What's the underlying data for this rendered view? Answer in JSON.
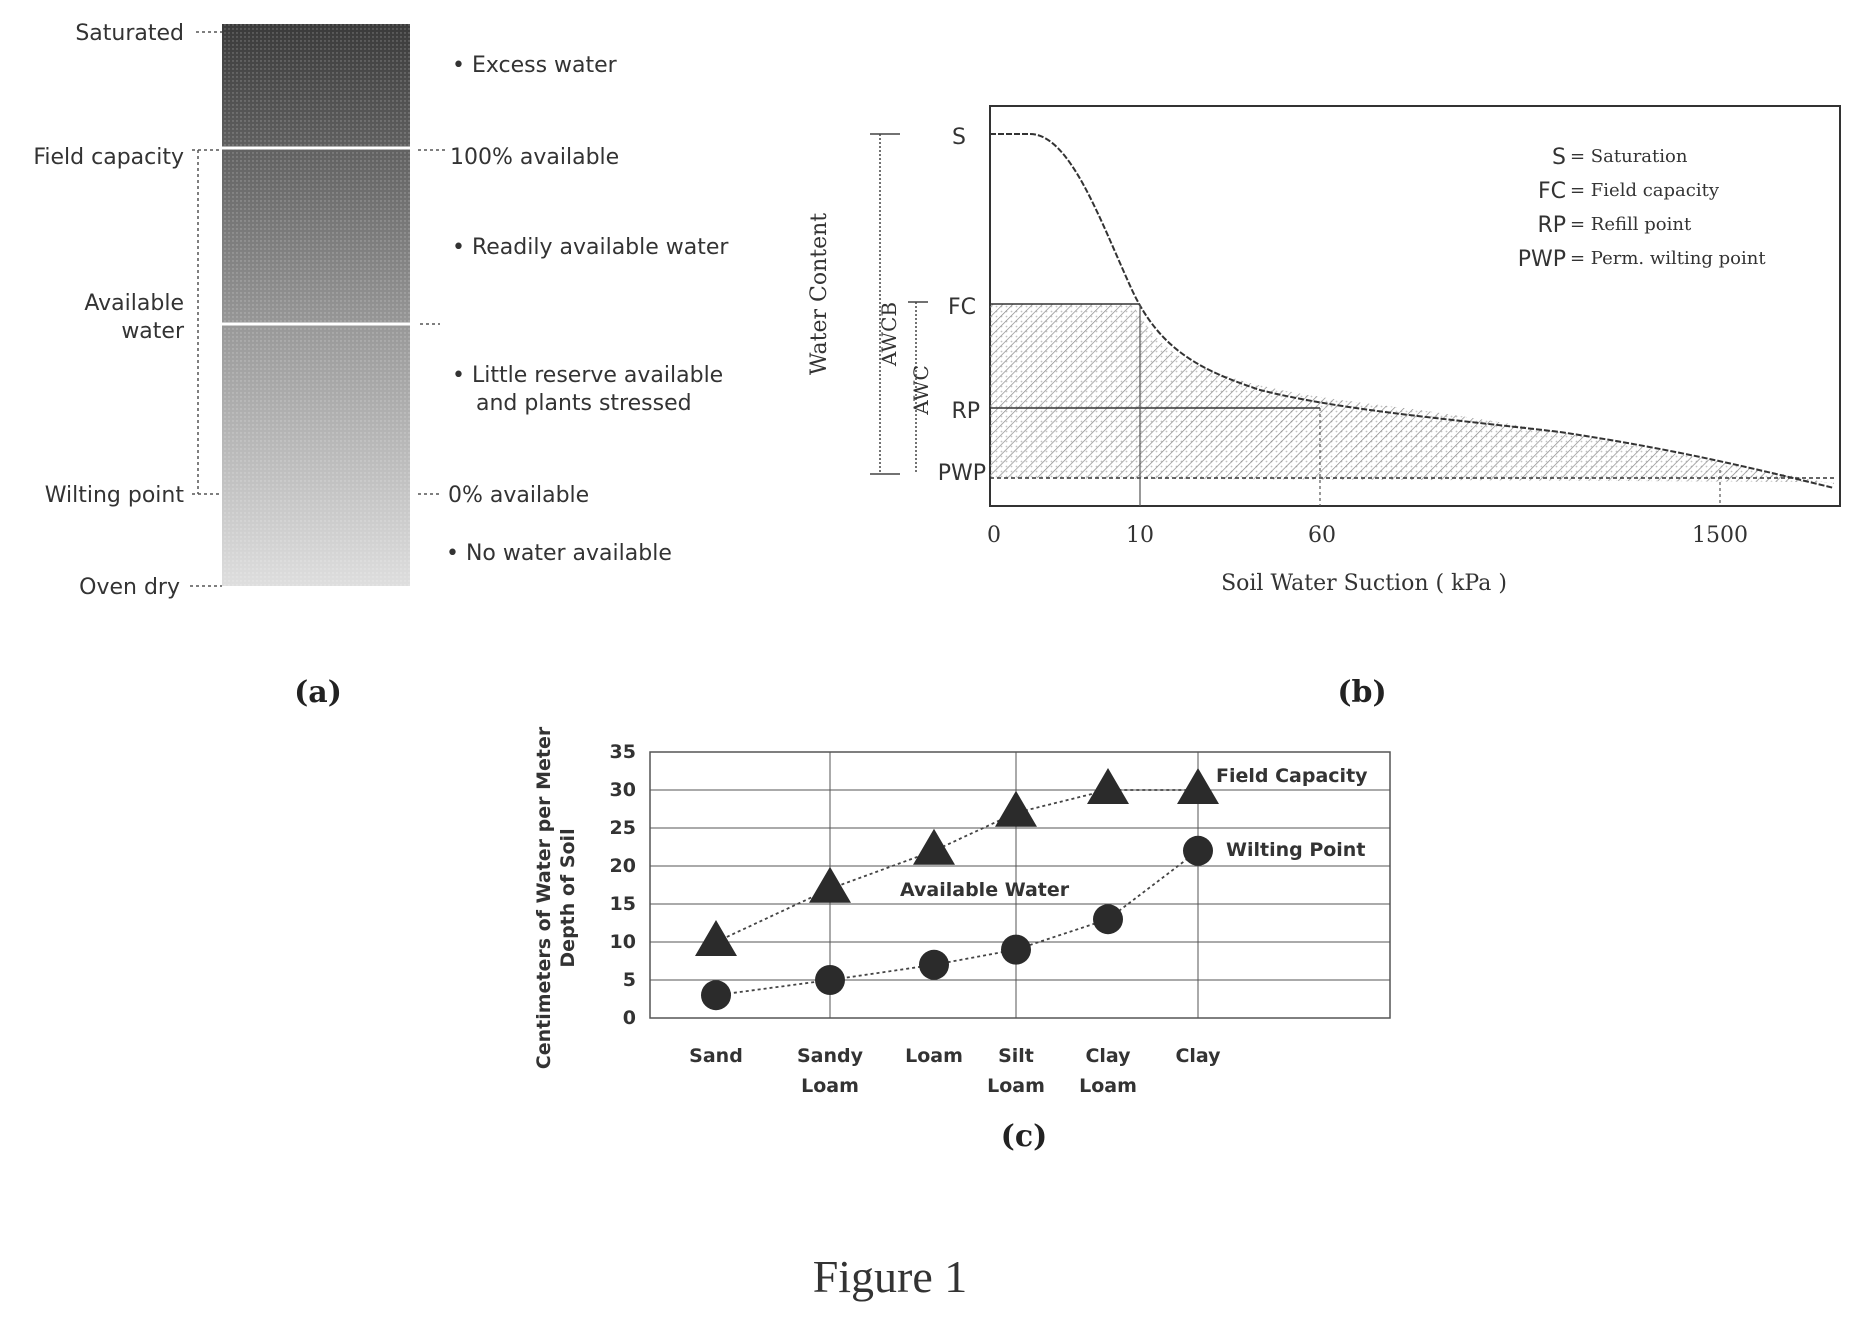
{
  "figure_caption": "Figure 1",
  "panel_a": {
    "label": "(a)",
    "left_labels": {
      "saturated": "Saturated",
      "field_capacity": "Field capacity",
      "available_water_1": "Available",
      "available_water_2": "water",
      "wilting_point": "Wilting point",
      "oven_dry": "Oven dry"
    },
    "right_labels": {
      "excess": "• Excess water",
      "pct100": "100% available",
      "readily": "• Readily available water",
      "little_1": "• Little reserve available",
      "little_2": "and plants stressed",
      "pct0": "0% available",
      "none": "• No water available"
    },
    "colors": {
      "top": "#3a3a3a",
      "bottom": "#dcdcdc"
    }
  },
  "panel_b": {
    "label": "(b)",
    "ylabel": "Water Content",
    "xlabel": "Soil Water Suction ( kPa )",
    "awcb": "AWCB",
    "awc": "AWC",
    "levels": {
      "s": "S",
      "fc": "FC",
      "rp": "RP",
      "pwp": "PWP"
    },
    "ticks": [
      "0",
      "10",
      "60",
      "1500"
    ],
    "legend": [
      {
        "abbr": "S",
        "desc": "= Saturation"
      },
      {
        "abbr": "FC",
        "desc": "= Field capacity"
      },
      {
        "abbr": "RP",
        "desc": "= Refill point"
      },
      {
        "abbr": "PWP",
        "desc": "= Perm. wilting point"
      }
    ]
  },
  "panel_c": {
    "label": "(c)",
    "chart_data": {
      "type": "line",
      "ylabel_line1": "Centimeters of Water per Meter",
      "ylabel_line2": "Depth of Soil",
      "categories": [
        [
          "Sand"
        ],
        [
          "Sandy",
          "Loam"
        ],
        [
          "Loam"
        ],
        [
          "Silt",
          "Loam"
        ],
        [
          "Clay",
          "Loam"
        ],
        [
          "Clay"
        ]
      ],
      "ylim": [
        0,
        35
      ],
      "yticks": [
        "0",
        "5",
        "10",
        "15",
        "20",
        "25",
        "30",
        "35"
      ],
      "series": [
        {
          "name": "Field Capacity",
          "marker": "triangle",
          "values": [
            10,
            17,
            22,
            27,
            30,
            30
          ]
        },
        {
          "name": "Wilting Point",
          "marker": "circle",
          "values": [
            3,
            5,
            7,
            9,
            13,
            22
          ]
        }
      ],
      "annotation": "Available Water",
      "grid": true
    }
  }
}
